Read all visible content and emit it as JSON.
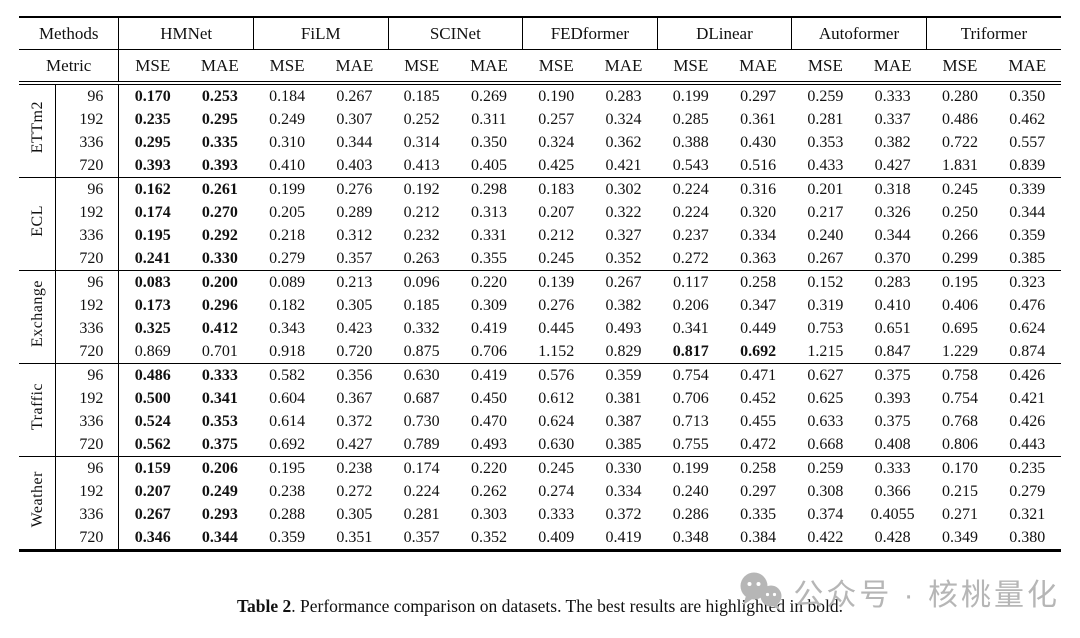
{
  "table": {
    "header": {
      "methods_label": "Methods",
      "metric_label": "Metric",
      "methods": [
        "HMNet",
        "FiLM",
        "SCINet",
        "FEDformer",
        "DLinear",
        "Autoformer",
        "Triformer"
      ],
      "metrics": [
        "MSE",
        "MAE"
      ]
    },
    "groups": [
      {
        "dataset": "ETTm2",
        "rows": [
          {
            "horizon": "96",
            "bold": [
              0,
              1
            ],
            "values": [
              "0.170",
              "0.253",
              "0.184",
              "0.267",
              "0.185",
              "0.269",
              "0.190",
              "0.283",
              "0.199",
              "0.297",
              "0.259",
              "0.333",
              "0.280",
              "0.350"
            ]
          },
          {
            "horizon": "192",
            "bold": [
              0,
              1
            ],
            "values": [
              "0.235",
              "0.295",
              "0.249",
              "0.307",
              "0.252",
              "0.311",
              "0.257",
              "0.324",
              "0.285",
              "0.361",
              "0.281",
              "0.337",
              "0.486",
              "0.462"
            ]
          },
          {
            "horizon": "336",
            "bold": [
              0,
              1
            ],
            "values": [
              "0.295",
              "0.335",
              "0.310",
              "0.344",
              "0.314",
              "0.350",
              "0.324",
              "0.362",
              "0.388",
              "0.430",
              "0.353",
              "0.382",
              "0.722",
              "0.557"
            ]
          },
          {
            "horizon": "720",
            "bold": [
              0,
              1
            ],
            "values": [
              "0.393",
              "0.393",
              "0.410",
              "0.403",
              "0.413",
              "0.405",
              "0.425",
              "0.421",
              "0.543",
              "0.516",
              "0.433",
              "0.427",
              "1.831",
              "0.839"
            ]
          }
        ]
      },
      {
        "dataset": "ECL",
        "rows": [
          {
            "horizon": "96",
            "bold": [
              0,
              1
            ],
            "values": [
              "0.162",
              "0.261",
              "0.199",
              "0.276",
              "0.192",
              "0.298",
              "0.183",
              "0.302",
              "0.224",
              "0.316",
              "0.201",
              "0.318",
              "0.245",
              "0.339"
            ]
          },
          {
            "horizon": "192",
            "bold": [
              0,
              1
            ],
            "values": [
              "0.174",
              "0.270",
              "0.205",
              "0.289",
              "0.212",
              "0.313",
              "0.207",
              "0.322",
              "0.224",
              "0.320",
              "0.217",
              "0.326",
              "0.250",
              "0.344"
            ]
          },
          {
            "horizon": "336",
            "bold": [
              0,
              1
            ],
            "values": [
              "0.195",
              "0.292",
              "0.218",
              "0.312",
              "0.232",
              "0.331",
              "0.212",
              "0.327",
              "0.237",
              "0.334",
              "0.240",
              "0.344",
              "0.266",
              "0.359"
            ]
          },
          {
            "horizon": "720",
            "bold": [
              0,
              1
            ],
            "values": [
              "0.241",
              "0.330",
              "0.279",
              "0.357",
              "0.263",
              "0.355",
              "0.245",
              "0.352",
              "0.272",
              "0.363",
              "0.267",
              "0.370",
              "0.299",
              "0.385"
            ]
          }
        ]
      },
      {
        "dataset": "Exchange",
        "rows": [
          {
            "horizon": "96",
            "bold": [
              0,
              1
            ],
            "values": [
              "0.083",
              "0.200",
              "0.089",
              "0.213",
              "0.096",
              "0.220",
              "0.139",
              "0.267",
              "0.117",
              "0.258",
              "0.152",
              "0.283",
              "0.195",
              "0.323"
            ]
          },
          {
            "horizon": "192",
            "bold": [
              0,
              1
            ],
            "values": [
              "0.173",
              "0.296",
              "0.182",
              "0.305",
              "0.185",
              "0.309",
              "0.276",
              "0.382",
              "0.206",
              "0.347",
              "0.319",
              "0.410",
              "0.406",
              "0.476"
            ]
          },
          {
            "horizon": "336",
            "bold": [
              0,
              1
            ],
            "values": [
              "0.325",
              "0.412",
              "0.343",
              "0.423",
              "0.332",
              "0.419",
              "0.445",
              "0.493",
              "0.341",
              "0.449",
              "0.753",
              "0.651",
              "0.695",
              "0.624"
            ]
          },
          {
            "horizon": "720",
            "bold": [
              8,
              9
            ],
            "values": [
              "0.869",
              "0.701",
              "0.918",
              "0.720",
              "0.875",
              "0.706",
              "1.152",
              "0.829",
              "0.817",
              "0.692",
              "1.215",
              "0.847",
              "1.229",
              "0.874"
            ]
          }
        ]
      },
      {
        "dataset": "Traffic",
        "rows": [
          {
            "horizon": "96",
            "bold": [
              0,
              1
            ],
            "values": [
              "0.486",
              "0.333",
              "0.582",
              "0.356",
              "0.630",
              "0.419",
              "0.576",
              "0.359",
              "0.754",
              "0.471",
              "0.627",
              "0.375",
              "0.758",
              "0.426"
            ]
          },
          {
            "horizon": "192",
            "bold": [
              0,
              1
            ],
            "values": [
              "0.500",
              "0.341",
              "0.604",
              "0.367",
              "0.687",
              "0.450",
              "0.612",
              "0.381",
              "0.706",
              "0.452",
              "0.625",
              "0.393",
              "0.754",
              "0.421"
            ]
          },
          {
            "horizon": "336",
            "bold": [
              0,
              1
            ],
            "values": [
              "0.524",
              "0.353",
              "0.614",
              "0.372",
              "0.730",
              "0.470",
              "0.624",
              "0.387",
              "0.713",
              "0.455",
              "0.633",
              "0.375",
              "0.768",
              "0.426"
            ]
          },
          {
            "horizon": "720",
            "bold": [
              0,
              1
            ],
            "values": [
              "0.562",
              "0.375",
              "0.692",
              "0.427",
              "0.789",
              "0.493",
              "0.630",
              "0.385",
              "0.755",
              "0.472",
              "0.668",
              "0.408",
              "0.806",
              "0.443"
            ]
          }
        ]
      },
      {
        "dataset": "Weather",
        "rows": [
          {
            "horizon": "96",
            "bold": [
              0,
              1
            ],
            "values": [
              "0.159",
              "0.206",
              "0.195",
              "0.238",
              "0.174",
              "0.220",
              "0.245",
              "0.330",
              "0.199",
              "0.258",
              "0.259",
              "0.333",
              "0.170",
              "0.235"
            ]
          },
          {
            "horizon": "192",
            "bold": [
              0,
              1
            ],
            "values": [
              "0.207",
              "0.249",
              "0.238",
              "0.272",
              "0.224",
              "0.262",
              "0.274",
              "0.334",
              "0.240",
              "0.297",
              "0.308",
              "0.366",
              "0.215",
              "0.279"
            ]
          },
          {
            "horizon": "336",
            "bold": [
              0,
              1
            ],
            "values": [
              "0.267",
              "0.293",
              "0.288",
              "0.305",
              "0.281",
              "0.303",
              "0.333",
              "0.372",
              "0.286",
              "0.335",
              "0.374",
              "0.4055",
              "0.271",
              "0.321"
            ]
          },
          {
            "horizon": "720",
            "bold": [
              0,
              1
            ],
            "values": [
              "0.346",
              "0.344",
              "0.359",
              "0.351",
              "0.357",
              "0.352",
              "0.409",
              "0.419",
              "0.348",
              "0.384",
              "0.422",
              "0.428",
              "0.349",
              "0.380"
            ]
          }
        ]
      }
    ]
  },
  "caption": {
    "label": "Table 2",
    "text": ". Performance comparison on datasets. The best results are highlighted in bold."
  },
  "watermark": {
    "text": "公众号 · 核桃量化",
    "color": "#b6b6b6"
  }
}
